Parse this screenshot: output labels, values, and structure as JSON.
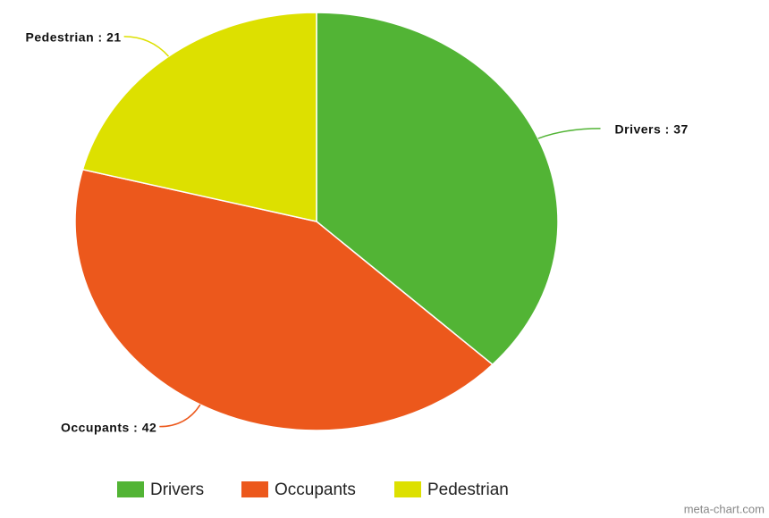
{
  "chart_data": {
    "type": "pie",
    "categories": [
      "Drivers",
      "Occupants",
      "Pedestrian"
    ],
    "values": [
      37,
      42,
      21
    ],
    "value_labels": [
      "Drivers : 37",
      "Occupants : 42",
      "Pedestrian : 21"
    ],
    "colors": [
      "#52b435",
      "#ec581c",
      "#dde000"
    ],
    "legend": "bottom",
    "watermark": "meta-chart.com"
  }
}
